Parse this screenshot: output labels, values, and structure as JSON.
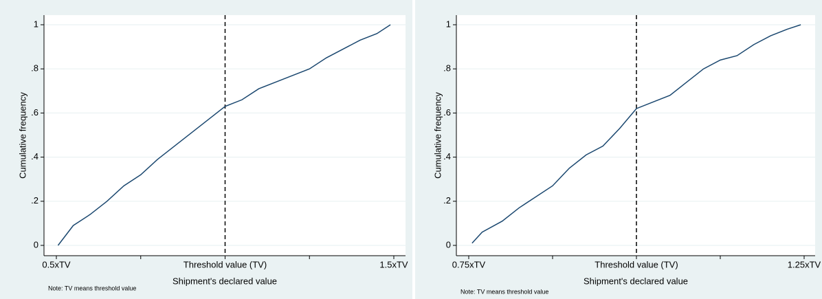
{
  "chart_data": [
    {
      "type": "line",
      "x_label": "Shipment's declared value",
      "y_label": "Cumulative frequency",
      "note": "Note: TV means threshold value",
      "xlim": [
        0.5,
        1.5
      ],
      "xticks": [
        {
          "value": 0.5,
          "label": "0.5xTV"
        },
        {
          "value": 0.75,
          "label": null
        },
        {
          "value": 1,
          "label": "Threshold value (TV)"
        },
        {
          "value": 1.25,
          "label": null
        },
        {
          "value": 1.5,
          "label": "1.5xTV"
        }
      ],
      "ylim": [
        0,
        1
      ],
      "yticks": [
        0,
        {
          "value": 0.2,
          "label": ".2"
        },
        {
          "value": 0.4,
          "label": ".4"
        },
        {
          "value": 0.6,
          "label": ".6"
        },
        {
          "value": 0.8,
          "label": ".8"
        },
        1
      ],
      "grid": true,
      "vline": 1,
      "series": [
        {
          "color": "#1a476f",
          "x": [
            0.505,
            0.52,
            0.55,
            0.6,
            0.65,
            0.7,
            0.75,
            0.8,
            0.85,
            0.9,
            0.95,
            1.0,
            1.05,
            1.1,
            1.15,
            1.2,
            1.25,
            1.3,
            1.35,
            1.4,
            1.45,
            1.49
          ],
          "values": [
            0,
            0.03,
            0.09,
            0.14,
            0.2,
            0.27,
            0.32,
            0.39,
            0.45,
            0.51,
            0.57,
            0.63,
            0.66,
            0.71,
            0.74,
            0.77,
            0.8,
            0.85,
            0.89,
            0.93,
            0.96,
            1.0
          ]
        }
      ]
    },
    {
      "type": "line",
      "x_label": "Shipment's declared value",
      "y_label": "Cumulative frequency",
      "note": "Note: TV means threshold value",
      "xlim": [
        0.75,
        1.25
      ],
      "xticks": [
        {
          "value": 0.75,
          "label": "0.75xTV"
        },
        {
          "value": 0.875,
          "label": null
        },
        {
          "value": 1,
          "label": "Threshold value (TV)"
        },
        {
          "value": 1.125,
          "label": null
        },
        {
          "value": 1.25,
          "label": "1.25xTV"
        }
      ],
      "ylim": [
        0,
        1
      ],
      "yticks": [
        0,
        {
          "value": 0.2,
          "label": ".2"
        },
        {
          "value": 0.4,
          "label": ".4"
        },
        {
          "value": 0.6,
          "label": ".6"
        },
        {
          "value": 0.8,
          "label": ".8"
        },
        1
      ],
      "grid": true,
      "vline": 1,
      "series": [
        {
          "color": "#1a476f",
          "x": [
            0.755,
            0.77,
            0.8,
            0.825,
            0.85,
            0.875,
            0.9,
            0.925,
            0.95,
            0.975,
            1.0,
            1.025,
            1.05,
            1.075,
            1.1,
            1.125,
            1.15,
            1.175,
            1.2,
            1.225,
            1.245
          ],
          "values": [
            0.01,
            0.06,
            0.11,
            0.17,
            0.22,
            0.27,
            0.35,
            0.41,
            0.45,
            0.53,
            0.62,
            0.65,
            0.68,
            0.74,
            0.8,
            0.84,
            0.86,
            0.91,
            0.95,
            0.98,
            1.0
          ]
        }
      ]
    }
  ]
}
